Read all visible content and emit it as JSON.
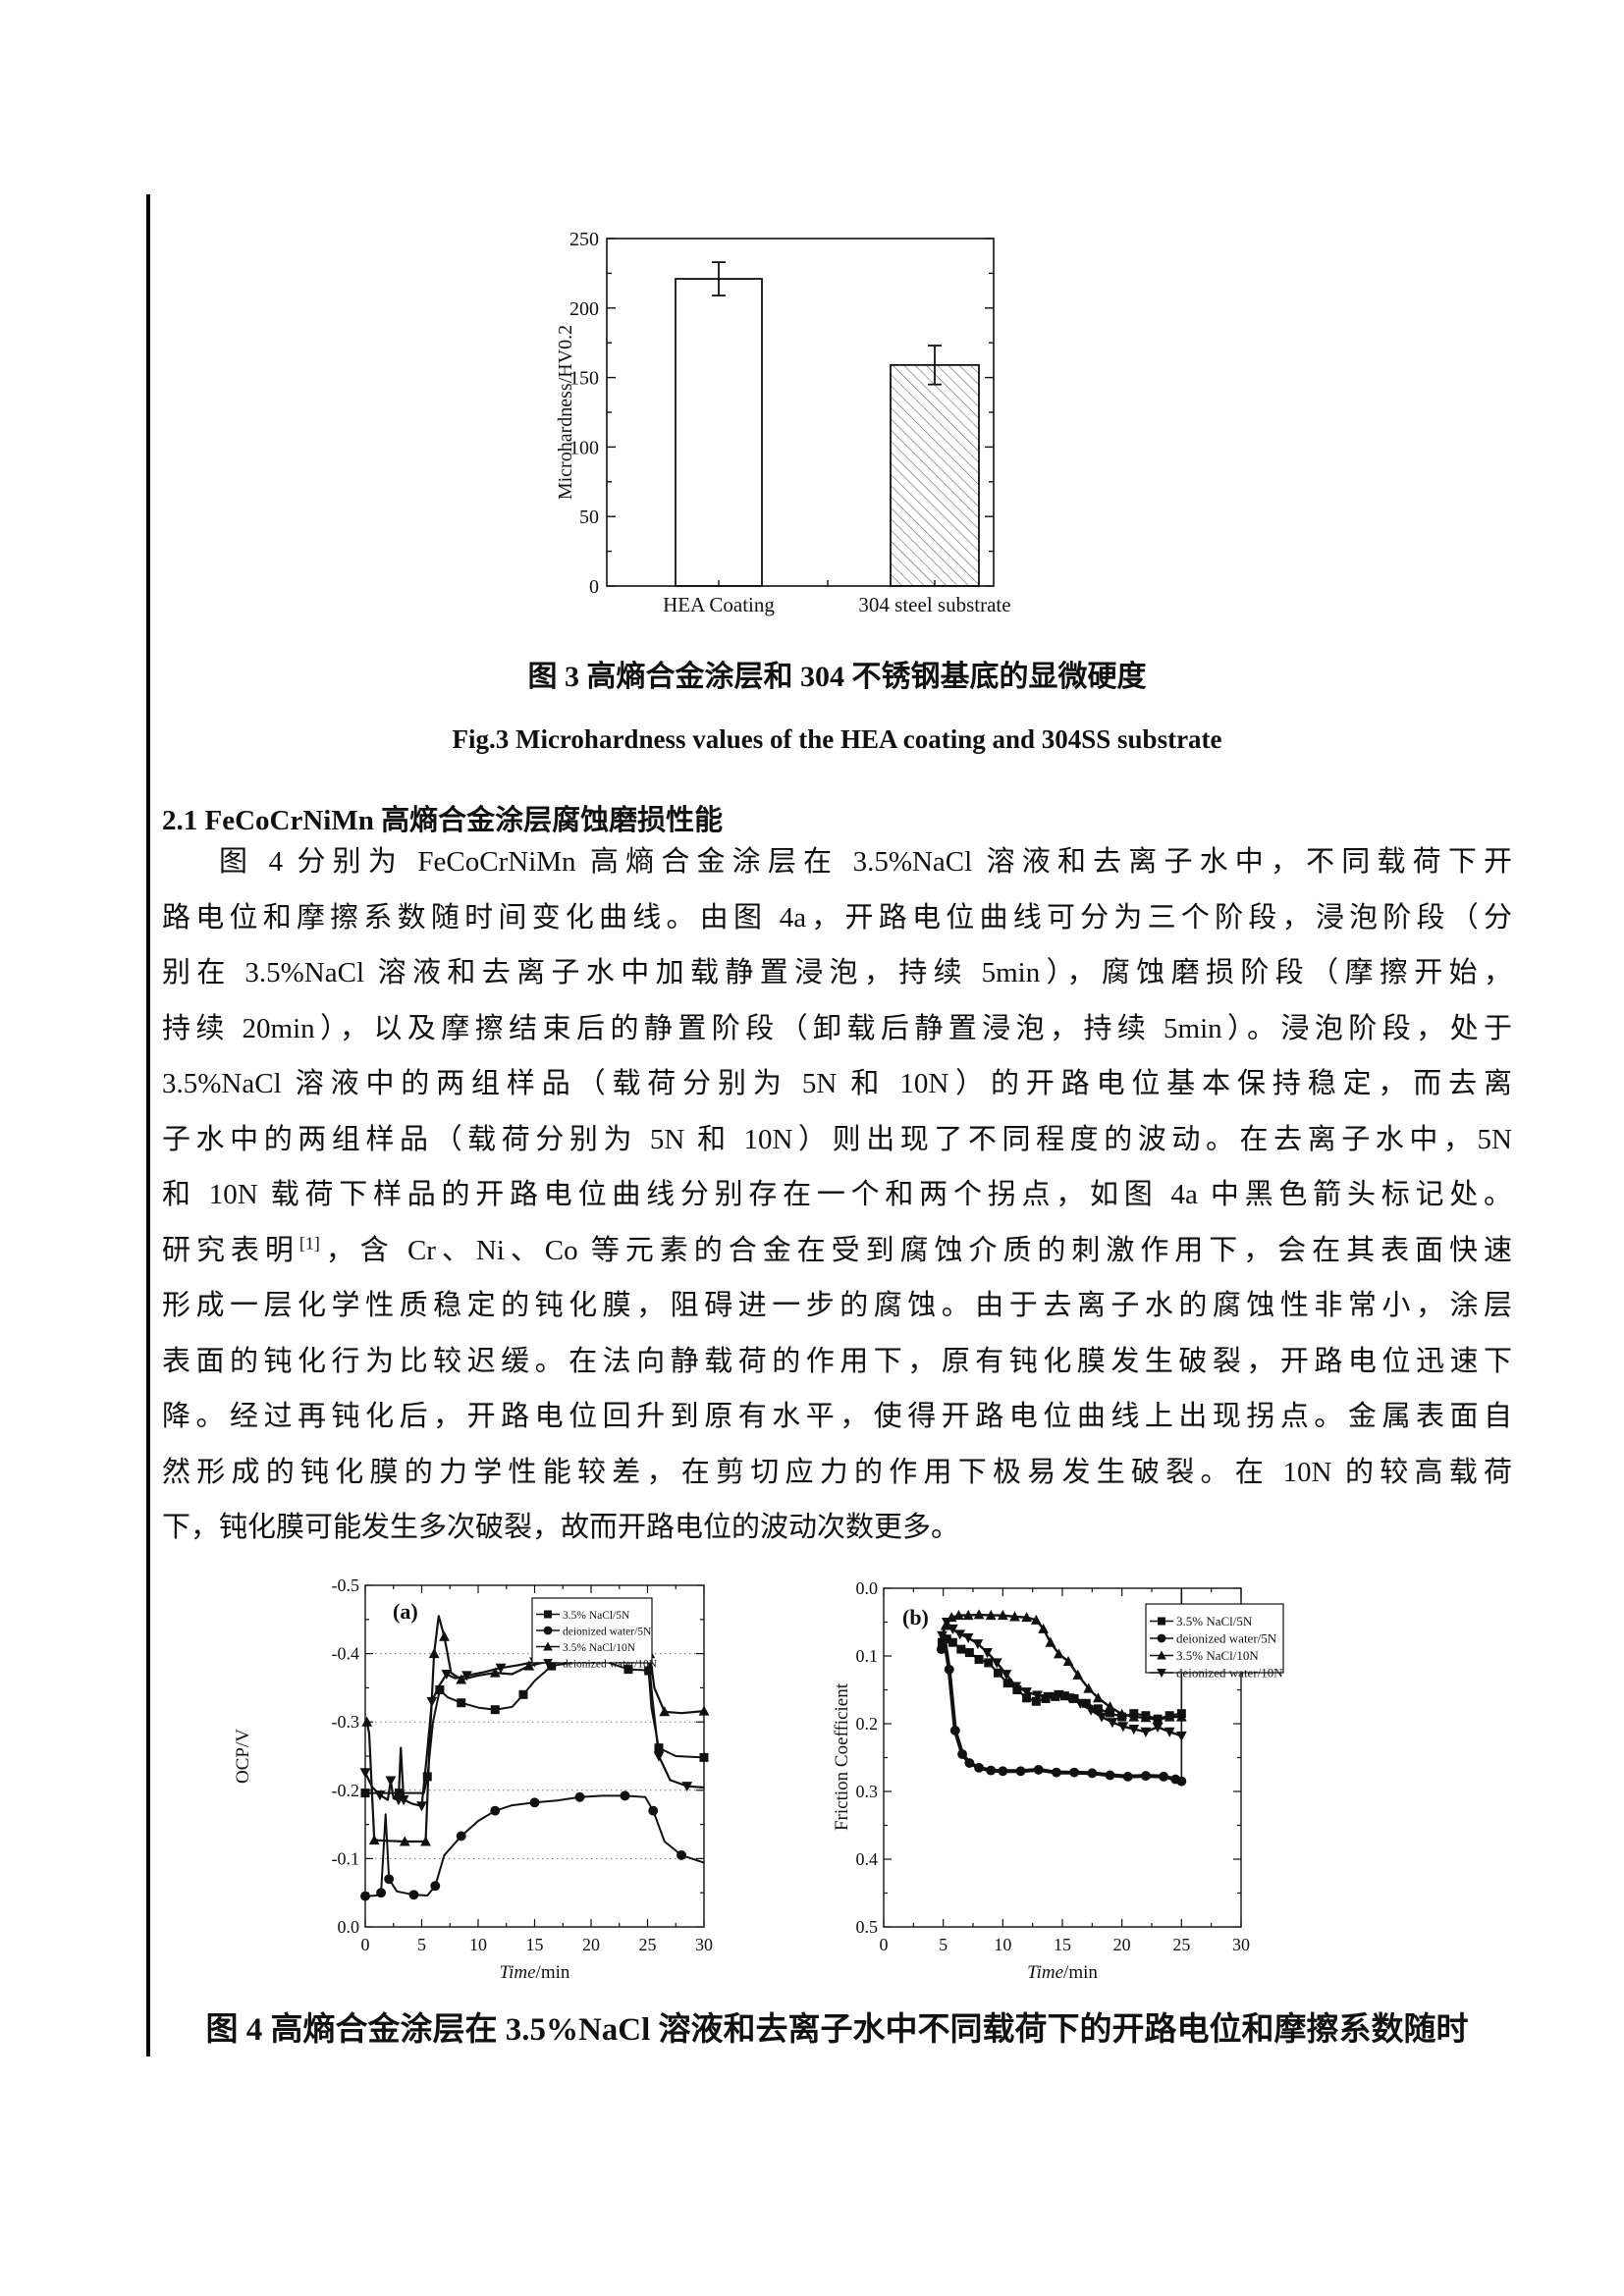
{
  "figure3": {
    "caption_cn": "图 3 高熵合金涂层和 304 不锈钢基底的显微硬度",
    "caption_en": "Fig.3 Microhardness values of the HEA coating and 304SS substrate"
  },
  "section": {
    "heading": "2.1 FeCoCrNiMn 高熵合金涂层腐蚀磨损性能"
  },
  "paragraph": {
    "lines": [
      {
        "text": "图 4 分别为 FeCoCrNiMn 高熵合金涂层在 3.5%NaCl 溶液和去离子水中，不同载荷下开"
      },
      {
        "text": "路电位和摩擦系数随时间变化曲线。由图 4a，开路电位曲线可分为三个阶段，浸泡阶段（分"
      },
      {
        "text": "别在 3.5%NaCl 溶液和去离子水中加载静置浸泡，持续 5min），腐蚀磨损阶段（摩擦开始，"
      },
      {
        "text": "持续 20min），以及摩擦结束后的静置阶段（卸载后静置浸泡，持续 5min）。浸泡阶段，处于"
      },
      {
        "text": "3.5%NaCl 溶液中的两组样品（载荷分别为 5N 和 10N）的开路电位基本保持稳定，而去离"
      },
      {
        "text": "子水中的两组样品（载荷分别为 5N 和 10N）则出现了不同程度的波动。在去离子水中，5N"
      },
      {
        "text": "和 10N 载荷下样品的开路电位曲线分别存在一个和两个拐点，如图 4a 中黑色箭头标记处。"
      },
      {
        "pre": "研究表明",
        "sup": "[1]",
        "post": "，含 Cr、Ni、Co 等元素的合金在受到腐蚀介质的刺激作用下，会在其表面快速"
      },
      {
        "text": "形成一层化学性质稳定的钝化膜，阻碍进一步的腐蚀。由于去离子水的腐蚀性非常小，涂层"
      },
      {
        "text": "表面的钝化行为比较迟缓。在法向静载荷的作用下，原有钝化膜发生破裂，开路电位迅速下"
      },
      {
        "text": "降。经过再钝化后，开路电位回升到原有水平，使得开路电位曲线上出现拐点。金属表面自"
      },
      {
        "text": "然形成的钝化膜的力学性能较差，在剪切应力的作用下极易发生破裂。在 10N 的较高载荷"
      },
      {
        "text": "下，钝化膜可能发生多次破裂，故而开路电位的波动次数更多。"
      }
    ]
  },
  "figure4": {
    "caption_cn": "图 4 高熵合金涂层在 3.5%NaCl 溶液和去离子水中不同载荷下的开路电位和摩擦系数随时"
  },
  "chart_data": [
    {
      "type": "bar",
      "title": "",
      "categories": [
        "HEA Coating",
        "304 steel substrate"
      ],
      "values": [
        221,
        159
      ],
      "errors": [
        12,
        14
      ],
      "bar_styles": [
        "open",
        "hatched"
      ],
      "xlabel": "",
      "ylabel": "Microhardness/HV0.2",
      "ylim": [
        0,
        250
      ],
      "yticks": [
        0,
        50,
        100,
        150,
        200,
        250
      ],
      "grid": "off"
    },
    {
      "type": "line",
      "panel_label": "(a)",
      "xlabel": "Time/min",
      "ylabel": "OCP/V",
      "xlim": [
        0,
        30
      ],
      "ylim": [
        -0.5,
        0.0
      ],
      "xticks": [
        0,
        5,
        10,
        15,
        20,
        25,
        30
      ],
      "yticks": [
        0.0,
        -0.1,
        -0.2,
        -0.3,
        -0.4,
        -0.5
      ],
      "gridlines_y": [
        -0.1,
        -0.2,
        -0.3,
        -0.4
      ],
      "legend_position": "top-right-inside",
      "legend": [
        "3.5% NaCl/5N",
        "deionized water/5N",
        "3.5% NaCl/10N",
        "deionized water/10N"
      ],
      "series": [
        {
          "name": "3.5% NaCl/5N",
          "marker": "square",
          "marker_every": 2,
          "x": [
            0,
            1.5,
            3,
            5.2,
            5.5,
            6.0,
            6.6,
            7.3,
            8.5,
            10,
            11.5,
            13,
            14,
            15,
            16.5,
            18,
            20,
            21.5,
            23.3,
            24.5,
            25.1,
            25.35,
            26,
            27.5,
            30
          ],
          "y": [
            -0.196,
            -0.196,
            -0.196,
            -0.196,
            -0.22,
            -0.3,
            -0.347,
            -0.336,
            -0.328,
            -0.321,
            -0.318,
            -0.322,
            -0.34,
            -0.36,
            -0.382,
            -0.386,
            -0.392,
            -0.387,
            -0.377,
            -0.376,
            -0.375,
            -0.32,
            -0.262,
            -0.25,
            -0.248
          ]
        },
        {
          "name": "deionized water/5N",
          "marker": "circle",
          "marker_every": 2,
          "x": [
            0,
            1.0,
            1.4,
            1.8,
            2.1,
            2.8,
            4.3,
            5.5,
            6.2,
            7.0,
            8.5,
            10,
            11.5,
            13,
            15,
            17,
            19,
            21,
            23,
            24.8,
            25.5,
            26.5,
            28,
            30
          ],
          "y": [
            -0.045,
            -0.046,
            -0.05,
            -0.165,
            -0.07,
            -0.052,
            -0.047,
            -0.046,
            -0.06,
            -0.105,
            -0.133,
            -0.155,
            -0.17,
            -0.178,
            -0.182,
            -0.185,
            -0.19,
            -0.192,
            -0.192,
            -0.19,
            -0.17,
            -0.125,
            -0.105,
            -0.094
          ]
        },
        {
          "name": "3.5% NaCl/10N",
          "marker": "triangle-up",
          "marker_every": 2,
          "x": [
            0.15,
            0.35,
            0.8,
            2,
            3.5,
            4.5,
            5.35,
            5.7,
            6.1,
            6.5,
            7.0,
            7.6,
            8.5,
            10,
            11.5,
            13,
            14.5,
            16,
            17.5,
            19,
            20.5,
            22,
            23.5,
            24.8,
            25.2,
            25.6,
            26.5,
            28,
            30
          ],
          "y": [
            -0.3,
            -0.283,
            -0.127,
            -0.126,
            -0.125,
            -0.125,
            -0.125,
            -0.27,
            -0.4,
            -0.455,
            -0.425,
            -0.372,
            -0.362,
            -0.368,
            -0.372,
            -0.37,
            -0.382,
            -0.388,
            -0.395,
            -0.405,
            -0.414,
            -0.418,
            -0.417,
            -0.414,
            -0.4,
            -0.35,
            -0.315,
            -0.313,
            -0.316
          ]
        },
        {
          "name": "deionized water/10N",
          "marker": "triangle-down",
          "marker_every": 2,
          "x": [
            0,
            0.6,
            1.3,
            2.0,
            2.25,
            2.5,
            2.95,
            3.15,
            3.4,
            4.2,
            5.0,
            5.45,
            5.9,
            6.5,
            7.2,
            8.0,
            9.0,
            10.5,
            12,
            13.5,
            15,
            16.5,
            17.5,
            18.5,
            19.5,
            21,
            22.5,
            24,
            25.0,
            25.45,
            26,
            27,
            28.5,
            30
          ],
          "y": [
            -0.226,
            -0.205,
            -0.193,
            -0.186,
            -0.214,
            -0.188,
            -0.186,
            -0.262,
            -0.186,
            -0.18,
            -0.177,
            -0.25,
            -0.33,
            -0.352,
            -0.37,
            -0.364,
            -0.368,
            -0.373,
            -0.379,
            -0.383,
            -0.388,
            -0.395,
            -0.402,
            -0.41,
            -0.415,
            -0.416,
            -0.414,
            -0.412,
            -0.41,
            -0.33,
            -0.25,
            -0.215,
            -0.206,
            -0.204
          ]
        }
      ]
    },
    {
      "type": "line",
      "panel_label": "(b)",
      "xlabel": "Time/min",
      "ylabel": "Friction Coefficient",
      "xlim": [
        0,
        30
      ],
      "ylim": [
        0.0,
        0.5
      ],
      "xticks": [
        0,
        5,
        10,
        15,
        20,
        25,
        30
      ],
      "yticks": [
        0.0,
        0.1,
        0.2,
        0.3,
        0.4,
        0.5
      ],
      "gridlines_y": [],
      "legend_position": "top-right-inside",
      "legend": [
        "3.5% NaCl/5N",
        "deionized water/5N",
        "3.5% NaCl/10N",
        "deionized water/10N"
      ],
      "end_line": {
        "x": 25,
        "y_from": 0.0,
        "y_to": 0.29
      },
      "series": [
        {
          "name": "3.5% NaCl/5N",
          "marker": "square",
          "marker_every": 1,
          "x": [
            4.9,
            5.3,
            5.8,
            6.5,
            7.2,
            8,
            8.8,
            9.6,
            10.4,
            11.2,
            12,
            12.8,
            13.6,
            14.4,
            15.2,
            16,
            17,
            18,
            19,
            20,
            21,
            22,
            23,
            24,
            25
          ],
          "y": [
            0.08,
            0.075,
            0.08,
            0.09,
            0.095,
            0.105,
            0.11,
            0.125,
            0.14,
            0.15,
            0.162,
            0.167,
            0.163,
            0.16,
            0.159,
            0.163,
            0.17,
            0.178,
            0.184,
            0.19,
            0.185,
            0.188,
            0.193,
            0.188,
            0.185
          ]
        },
        {
          "name": "deionized water/5N",
          "marker": "circle",
          "marker_every": 1,
          "x": [
            4.85,
            5.1,
            5.5,
            6.0,
            6.6,
            7.2,
            8,
            9,
            10,
            11.5,
            13,
            14.5,
            16,
            17.5,
            19,
            20.5,
            22,
            23.5,
            24.5,
            25
          ],
          "y": [
            0.09,
            0.075,
            0.12,
            0.21,
            0.245,
            0.258,
            0.265,
            0.269,
            0.27,
            0.27,
            0.268,
            0.272,
            0.272,
            0.273,
            0.276,
            0.278,
            0.277,
            0.278,
            0.282,
            0.285
          ]
        },
        {
          "name": "3.5% NaCl/10N",
          "marker": "triangle-up",
          "marker_every": 1,
          "x": [
            5.2,
            5.7,
            6.3,
            7.1,
            8,
            9,
            10,
            11,
            12,
            12.8,
            13.4,
            14,
            14.7,
            15.5,
            16.3,
            17.2,
            18,
            19,
            20,
            21,
            22,
            23,
            24,
            25
          ],
          "y": [
            0.055,
            0.043,
            0.04,
            0.04,
            0.039,
            0.04,
            0.04,
            0.042,
            0.043,
            0.047,
            0.06,
            0.08,
            0.097,
            0.108,
            0.128,
            0.148,
            0.162,
            0.175,
            0.186,
            0.19,
            0.191,
            0.194,
            0.19,
            0.19
          ]
        },
        {
          "name": "deionized water/10N",
          "marker": "triangle-down",
          "marker_every": 1,
          "x": [
            4.9,
            5.3,
            5.8,
            6.4,
            7.1,
            7.9,
            8.7,
            9.5,
            10.3,
            11.1,
            12,
            12.9,
            13.8,
            14.7,
            15.6,
            16.5,
            17.4,
            18.3,
            19.2,
            20.1,
            21,
            22,
            23,
            24,
            25
          ],
          "y": [
            0.07,
            0.05,
            0.06,
            0.068,
            0.073,
            0.082,
            0.095,
            0.11,
            0.127,
            0.145,
            0.153,
            0.158,
            0.16,
            0.157,
            0.162,
            0.17,
            0.18,
            0.19,
            0.198,
            0.204,
            0.208,
            0.212,
            0.205,
            0.212,
            0.218
          ]
        }
      ]
    }
  ]
}
